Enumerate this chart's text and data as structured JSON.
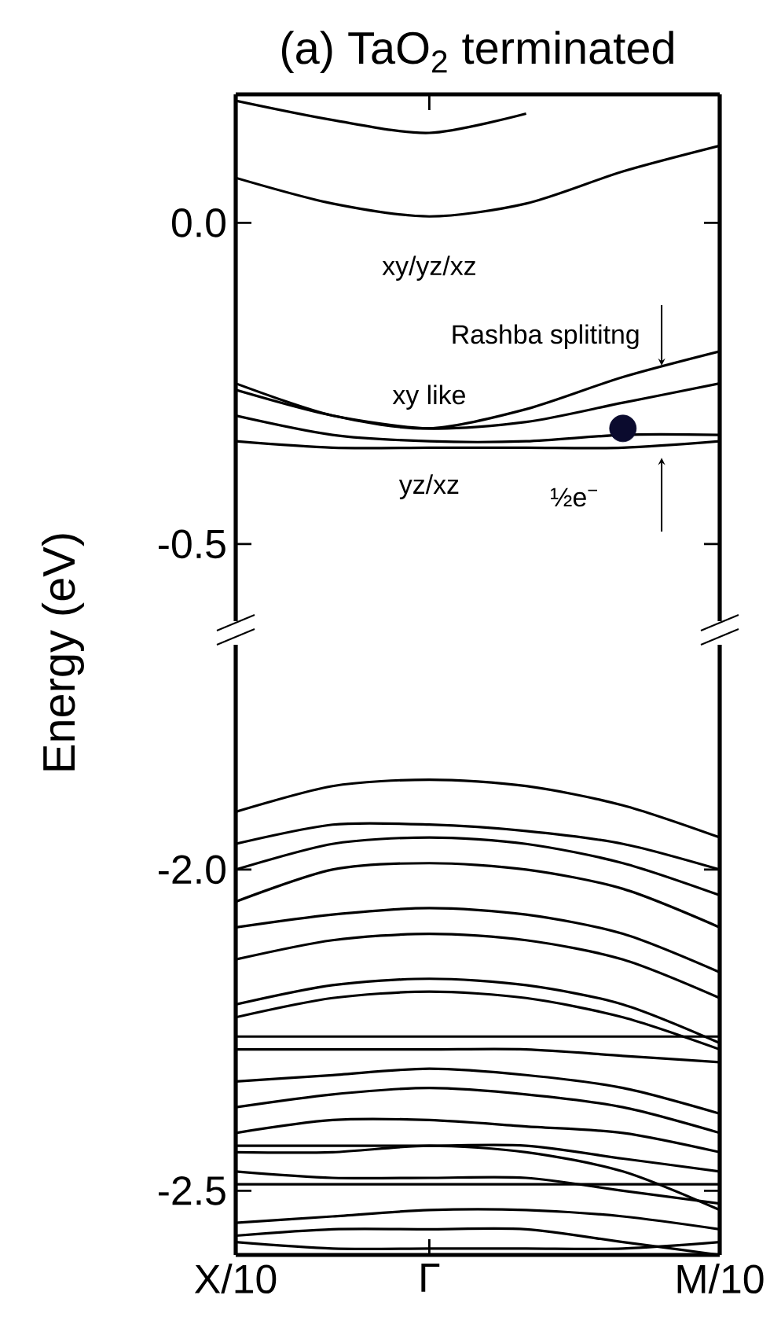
{
  "chart_data": [
    {
      "type": "line",
      "title": "(a) TaO$_{2}$ terminated",
      "ylabel": "Energy (eV)",
      "color": "#000000",
      "categories": [
        null,
        null,
        null,
        null,
        null,
        null
      ],
      "ylim": [
        -0.62,
        0.2
      ],
      "yticks": [
        {
          "value": 0,
          "label": "0.0"
        },
        {
          "value": -0.5,
          "label": "-0.5"
        }
      ],
      "tick_labels": "y",
      "series": [
        {
          "values": [
            0.19,
            0.16,
            0.14,
            0.17,
            null,
            null
          ]
        },
        {
          "values": [
            0.07,
            0.03,
            0.01,
            0.03,
            0.08,
            0.12
          ]
        },
        {
          "values": [
            -0.25,
            -0.3,
            -0.32,
            -0.29,
            -0.24,
            -0.2
          ]
        },
        {
          "values": [
            -0.26,
            -0.3,
            -0.32,
            -0.31,
            -0.28,
            -0.25
          ]
        },
        {
          "values": [
            -0.3,
            -0.33,
            -0.34,
            -0.34,
            -0.33,
            -0.33
          ]
        },
        {
          "values": [
            -0.34,
            -0.35,
            -0.35,
            -0.35,
            -0.35,
            -0.34
          ]
        },
        {
          "type": "scatter",
          "marker": "circle",
          "color": "#0b0b2e",
          "values": [
            null,
            null,
            null,
            null,
            -0.32,
            null
          ]
        }
      ],
      "annotations": [
        "xy/yz/xz",
        "Rashba splititng",
        "xy like",
        "yz/xz",
        "½e$^{−}$"
      ]
    },
    {
      "type": "line",
      "color": "#000000",
      "categories": [
        "X/10",
        null,
        "Γ",
        null,
        null,
        "M/10"
      ],
      "ylim": [
        -2.6,
        -1.65
      ],
      "yticks": [
        {
          "value": -2,
          "label": "-2.0"
        },
        {
          "value": -2.5,
          "label": "-2.5"
        }
      ],
      "series": [
        {
          "values": [
            -1.91,
            -1.87,
            -1.86,
            -1.87,
            -1.9,
            -1.95
          ]
        },
        {
          "values": [
            -1.96,
            -1.93,
            -1.93,
            -1.94,
            -1.96,
            -2.0
          ]
        },
        {
          "values": [
            -2.0,
            -1.96,
            -1.95,
            -1.96,
            -1.99,
            -2.04
          ]
        },
        {
          "values": [
            -2.05,
            -2.0,
            -1.99,
            -2.0,
            -2.03,
            -2.09
          ]
        },
        {
          "values": [
            -2.09,
            -2.07,
            -2.06,
            -2.07,
            -2.1,
            -2.16
          ]
        },
        {
          "values": [
            -2.14,
            -2.11,
            -2.1,
            -2.11,
            -2.14,
            -2.2
          ]
        },
        {
          "values": [
            -2.21,
            -2.18,
            -2.17,
            -2.18,
            -2.21,
            -2.27
          ]
        },
        {
          "values": [
            -2.23,
            -2.2,
            -2.19,
            -2.2,
            -2.23,
            -2.28
          ]
        },
        {
          "values": [
            -2.26,
            -2.26,
            -2.26,
            -2.26,
            -2.26,
            -2.26
          ]
        },
        {
          "values": [
            -2.28,
            -2.28,
            -2.28,
            -2.28,
            -2.29,
            -2.3
          ]
        },
        {
          "values": [
            -2.33,
            -2.32,
            -2.31,
            -2.32,
            -2.34,
            -2.38
          ]
        },
        {
          "values": [
            -2.37,
            -2.35,
            -2.34,
            -2.35,
            -2.37,
            -2.41
          ]
        },
        {
          "values": [
            -2.41,
            -2.39,
            -2.39,
            -2.4,
            -2.41,
            -2.44
          ]
        },
        {
          "values": [
            -2.43,
            -2.43,
            -2.43,
            -2.43,
            -2.45,
            -2.47
          ]
        },
        {
          "values": [
            -2.47,
            -2.48,
            -2.48,
            -2.48,
            -2.5,
            -2.52
          ]
        },
        {
          "values": [
            -2.44,
            -2.44,
            -2.43,
            -2.44,
            -2.47,
            -2.53
          ]
        },
        {
          "values": [
            -2.49,
            -2.49,
            -2.49,
            -2.49,
            -2.49,
            -2.49
          ]
        },
        {
          "values": [
            -2.55,
            -2.54,
            -2.53,
            -2.53,
            -2.54,
            -2.56
          ]
        },
        {
          "values": [
            -2.57,
            -2.56,
            -2.56,
            -2.56,
            -2.58,
            -2.6
          ]
        },
        {
          "values": [
            -2.58,
            -2.59,
            -2.59,
            -2.59,
            -2.59,
            -2.58
          ]
        }
      ]
    }
  ]
}
